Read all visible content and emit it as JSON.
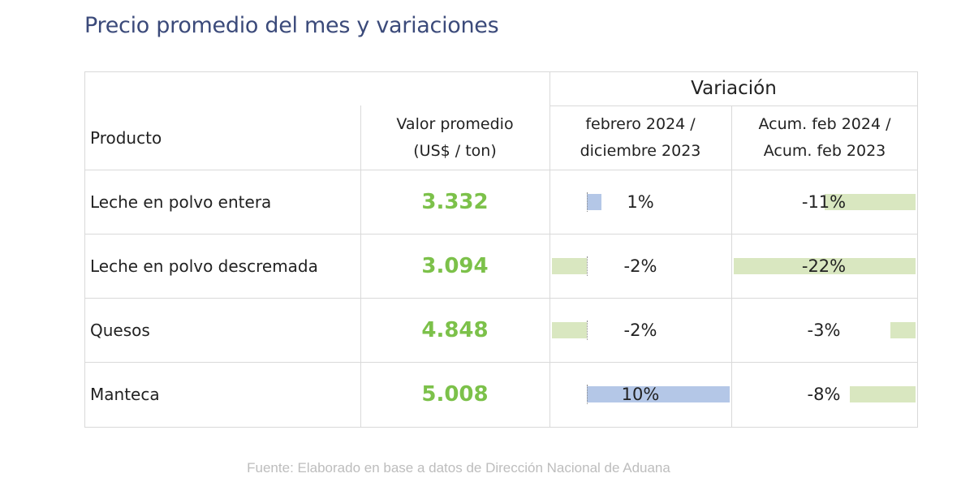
{
  "title": "Precio promedio del mes y variaciones",
  "source": "Fuente: Elaborado en base a datos de Dirección Nacional de Aduana",
  "colors": {
    "title": "#3b4a7a",
    "value_text": "#7cc14a",
    "positive_bar": "#b4c7e7",
    "negative_bar": "#d9e7c0"
  },
  "table": {
    "group_header": "Variación",
    "headers": {
      "producto": "Producto",
      "valor_line1": "Valor promedio",
      "valor_line2": "(US$ / ton)",
      "var1_line1": "febrero 2024 /",
      "var1_line2": "diciembre 2023",
      "var2_line1": "Acum. feb 2024 /",
      "var2_line2": "Acum. feb 2023"
    }
  },
  "chart_data": {
    "type": "table",
    "title": "Precio promedio del mes y variaciones",
    "columns": [
      "Producto",
      "Valor promedio (US$ / ton)",
      "febrero 2024 / diciembre 2023",
      "Acum. feb 2024 / Acum. feb 2023"
    ],
    "rows": [
      {
        "producto": "Leche en polvo entera",
        "valor": "3.332",
        "var_mensual": 1,
        "var_mensual_label": "1%",
        "var_acum": -11,
        "var_acum_label": "-11%"
      },
      {
        "producto": "Leche en polvo descremada",
        "valor": "3.094",
        "var_mensual": -2,
        "var_mensual_label": "-2%",
        "var_acum": -22,
        "var_acum_label": "-22%"
      },
      {
        "producto": "Quesos",
        "valor": "4.848",
        "var_mensual": -2,
        "var_mensual_label": "-2%",
        "var_acum": -3,
        "var_acum_label": "-3%"
      },
      {
        "producto": "Manteca",
        "valor": "5.008",
        "var_mensual": 10,
        "var_mensual_label": "10%",
        "var_acum": -8,
        "var_acum_label": "-8%"
      }
    ]
  }
}
